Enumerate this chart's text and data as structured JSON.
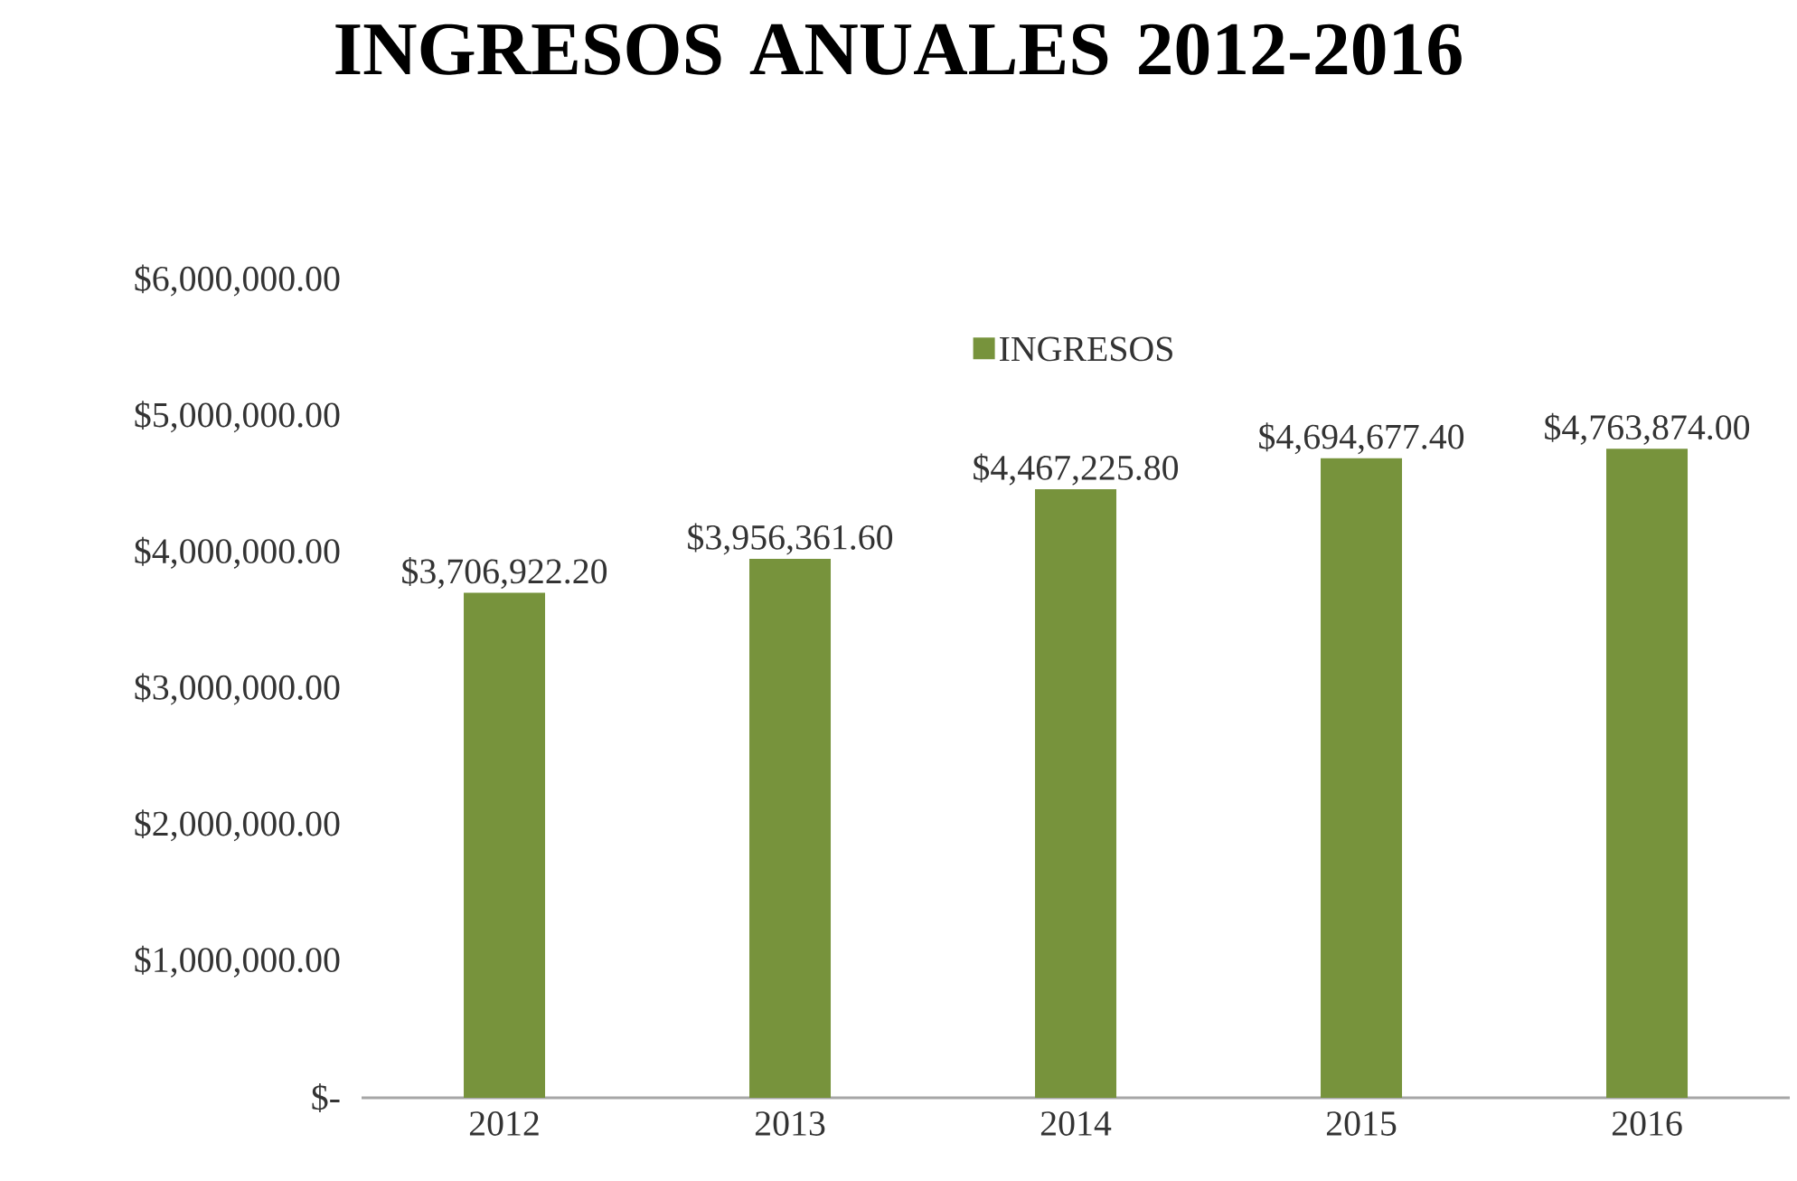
{
  "chart_data": {
    "type": "bar",
    "title": "INGRESOS ANUALES 2012-2016",
    "categories": [
      "2012",
      "2013",
      "2014",
      "2015",
      "2016"
    ],
    "series": [
      {
        "name": "INGRESOS",
        "color": "#77933c",
        "values": [
          3706922.2,
          3956361.6,
          4467225.8,
          4694677.4,
          4763874.0
        ],
        "value_labels": [
          "$3,706,922.20",
          "$3,956,361.60",
          "$4,467,225.80",
          "$4,694,677.40",
          "$4,763,874.00"
        ]
      }
    ],
    "ylim": [
      0,
      6000000
    ],
    "yticks": [
      {
        "value": 0,
        "label": "$-"
      },
      {
        "value": 1000000,
        "label": "$1,000,000.00"
      },
      {
        "value": 2000000,
        "label": "$2,000,000.00"
      },
      {
        "value": 3000000,
        "label": "$3,000,000.00"
      },
      {
        "value": 4000000,
        "label": "$4,000,000.00"
      },
      {
        "value": 5000000,
        "label": "$5,000,000.00"
      },
      {
        "value": 6000000,
        "label": "$6,000,000.00"
      }
    ],
    "legend": "top"
  }
}
